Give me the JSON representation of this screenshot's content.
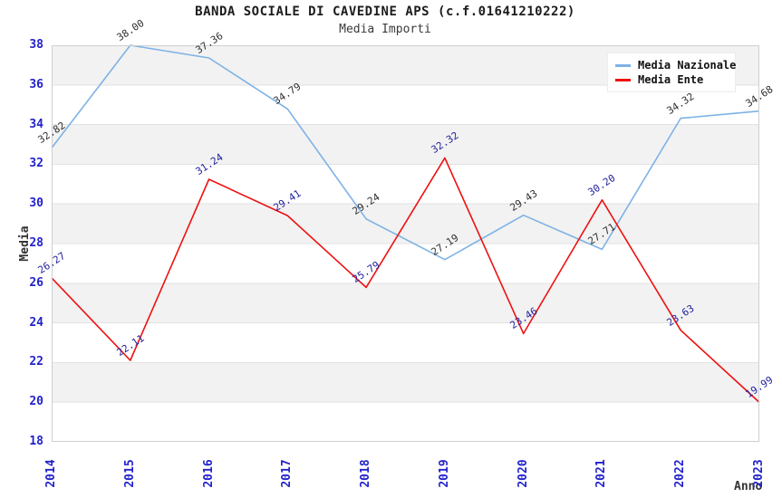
{
  "chart_data": {
    "type": "line",
    "title": "BANDA SOCIALE DI CAVEDINE APS (c.f.01641210222)",
    "subtitle": "Media Importi",
    "xlabel": "Anno",
    "ylabel": "Media",
    "x": [
      2014,
      2015,
      2016,
      2017,
      2018,
      2019,
      2020,
      2021,
      2022,
      2023
    ],
    "series": [
      {
        "name": "Media Nazionale",
        "color": "#7db2e5",
        "label_color": "#2e2e2e",
        "values": [
          32.82,
          38.0,
          37.36,
          34.79,
          29.24,
          27.19,
          29.43,
          27.71,
          34.32,
          34.68
        ]
      },
      {
        "name": "Media Ente",
        "color": "#ee1111",
        "label_color": "#20209d",
        "values": [
          26.27,
          22.11,
          31.24,
          29.41,
          25.79,
          32.32,
          23.46,
          30.2,
          23.63,
          19.99
        ]
      }
    ],
    "ylim": [
      18,
      38
    ],
    "ytick_step": 2,
    "grid": "alternating-horizontal-bands",
    "band_colors": [
      "#f2f2f2",
      "#ffffff"
    ],
    "gridline_color": "#e2e2e2",
    "plot_border_color": "#cfcfcf",
    "tick_label_color": "#2222cc",
    "legend_position": "top-right",
    "data_label_format": "0.00",
    "data_labels_rotation_deg": -33
  }
}
